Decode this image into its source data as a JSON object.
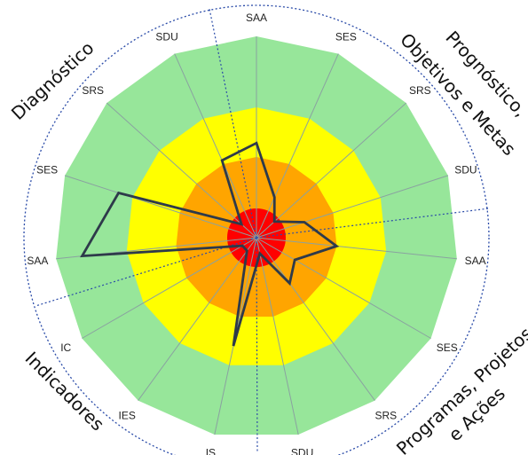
{
  "colors": {
    "outer_ring": "#97e69a",
    "middle_ring": "#ffff00",
    "inner_ring": "#ffa500",
    "core": "#ff0000",
    "spokes": "#8aa2a0",
    "data_line": "#2e3a4a",
    "dashed": "#2a4ba8"
  },
  "spoke_labels": [
    "SAA",
    "SES",
    "SRS",
    "SDU",
    "SAA",
    "SES",
    "SRS",
    "SDU",
    "IS",
    "IES",
    "IC",
    "SAA",
    "SES",
    "SRS",
    "SDU"
  ],
  "sectors": {
    "top_right_line1": "Prognóstico,",
    "top_right_line2": "Objetivos e Metas",
    "top_left": "Diagnóstico",
    "bottom_right_line1": "Programas, Projetos",
    "bottom_right_line2": "e Ações",
    "bottom_left": "Indicadores"
  },
  "chart_data": {
    "type": "radar",
    "axes": [
      "SAA",
      "SES",
      "SRS",
      "SDU",
      "SAA",
      "SES",
      "SRS",
      "SDU",
      "IS",
      "IES",
      "IC",
      "SAA",
      "SES",
      "SRS",
      "SDU"
    ],
    "levels": 4,
    "values": [
      0.47,
      0.22,
      0.12,
      0.25,
      0.4,
      0.22,
      0.28,
      0.08,
      0.55,
      0.08,
      0.08,
      0.87,
      0.72,
      0.1,
      0.42
    ]
  }
}
